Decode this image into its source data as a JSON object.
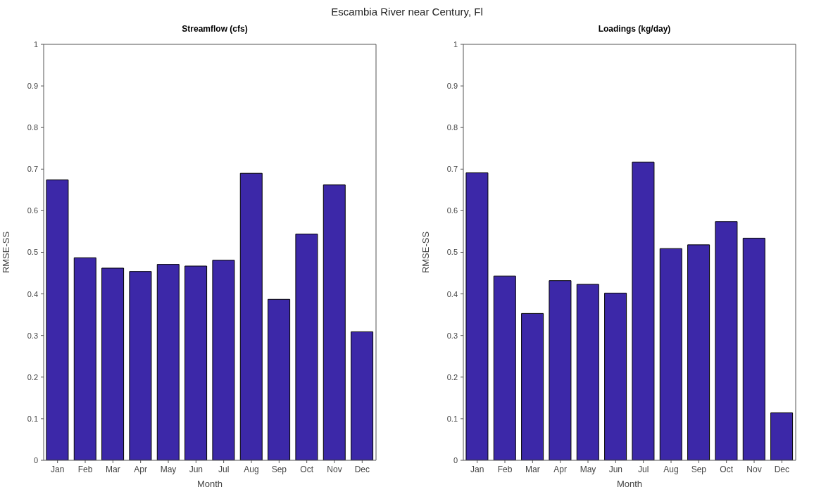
{
  "chart_data": [
    {
      "type": "bar",
      "title": "Streamflow (cfs)",
      "xlabel": "Month",
      "ylabel": "RMSE-SS",
      "annotations": [
        "Escambia River near Century, Fl"
      ],
      "categories": [
        "Jan",
        "Feb",
        "Mar",
        "Apr",
        "May",
        "Jun",
        "Jul",
        "Aug",
        "Sep",
        "Oct",
        "Nov",
        "Dec"
      ],
      "values": [
        0.674,
        0.487,
        0.462,
        0.454,
        0.471,
        0.467,
        0.481,
        0.69,
        0.387,
        0.544,
        0.662,
        0.309
      ],
      "color": "#3c28a8",
      "ylim": [
        0,
        1
      ],
      "yticks": [
        0,
        0.1,
        0.2,
        0.3,
        0.4,
        0.5,
        0.6,
        0.7,
        0.8,
        0.9,
        1
      ],
      "grid": false
    },
    {
      "type": "bar",
      "title": "Loadings (kg/day)",
      "xlabel": "Month",
      "ylabel": "RMSE-SS",
      "categories": [
        "Jan",
        "Feb",
        "Mar",
        "Apr",
        "May",
        "Jun",
        "Jul",
        "Aug",
        "Sep",
        "Oct",
        "Nov",
        "Dec"
      ],
      "values": [
        0.691,
        0.443,
        0.353,
        0.432,
        0.423,
        0.402,
        0.717,
        0.509,
        0.518,
        0.574,
        0.534,
        0.114
      ],
      "color": "#3c28a8",
      "ylim": [
        0,
        1
      ],
      "yticks": [
        0,
        0.1,
        0.2,
        0.3,
        0.4,
        0.5,
        0.6,
        0.7,
        0.8,
        0.9,
        1
      ],
      "grid": false
    }
  ]
}
